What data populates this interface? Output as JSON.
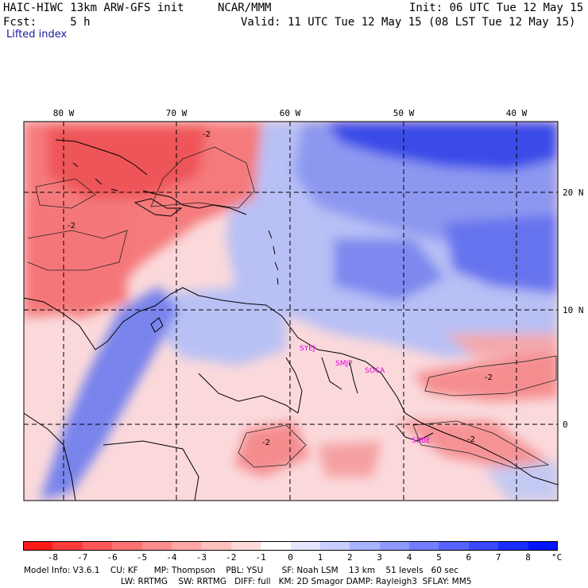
{
  "header": {
    "model_title": "HAIC-HIWC 13km ARW-GFS init",
    "center": "NCAR/MMM",
    "init": "Init: 06 UTC Tue 12 May 15",
    "fcst": "Fcst:     5 h",
    "valid": "Valid: 11 UTC Tue 12 May 15 (08 LST Tue 12 May 15)",
    "field": "Lifted index"
  },
  "map": {
    "lon_labels": [
      "80 W",
      "70 W",
      "60 W",
      "50 W",
      "40 W"
    ],
    "lat_labels": [
      "20 N",
      "10 N",
      "0"
    ],
    "contour_labels": [
      "-2",
      "-2",
      "-2",
      "-2",
      "-2"
    ],
    "stations": [
      "SYEJ",
      "SMJP",
      "SOCA",
      "SBBE"
    ]
  },
  "colorbar": {
    "ticks": [
      "-8",
      "-7",
      "-6",
      "-5",
      "-4",
      "-3",
      "-2",
      "-1",
      "0",
      "1",
      "2",
      "3",
      "4",
      "5",
      "6",
      "7",
      "8"
    ],
    "unit": "°C",
    "colors": [
      "#ff1a1a",
      "#ff3b3b",
      "#ff5757",
      "#ff7272",
      "#ff8c8c",
      "#ffa6a6",
      "#ffc0c0",
      "#ffdada",
      "#ffffff",
      "#e4e7ff",
      "#c8ceff",
      "#aab3ff",
      "#8e98ff",
      "#727dff",
      "#5562ff",
      "#3a48ff",
      "#1a2cff",
      "#0014ff"
    ]
  },
  "model_info": {
    "line1": "Model Info: V3.6.1    CU: KF      MP: Thompson    PBL: YSU       SF: Noah LSM    13 km    51 levels   60 sec",
    "line2": "LW: RRTMG    SW: RRTMG   DIFF: full   KM: 2D Smagor DAMP: Rayleigh3  SFLAY: MM5"
  }
}
